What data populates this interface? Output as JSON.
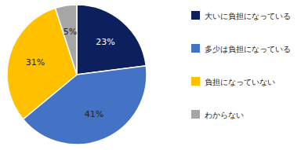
{
  "chart_data": {
    "type": "pie",
    "categories": [
      "大いに負担になっている",
      "多少は負担になっている",
      "負担になっていない",
      "わからない"
    ],
    "values": [
      23,
      41,
      31,
      5
    ],
    "value_labels": [
      "23%",
      "41%",
      "31%",
      "5%"
    ],
    "colors": [
      "#0d1f5c",
      "#4472c4",
      "#ffc000",
      "#a6a6a6"
    ],
    "data_labels": true,
    "legend": "right"
  }
}
